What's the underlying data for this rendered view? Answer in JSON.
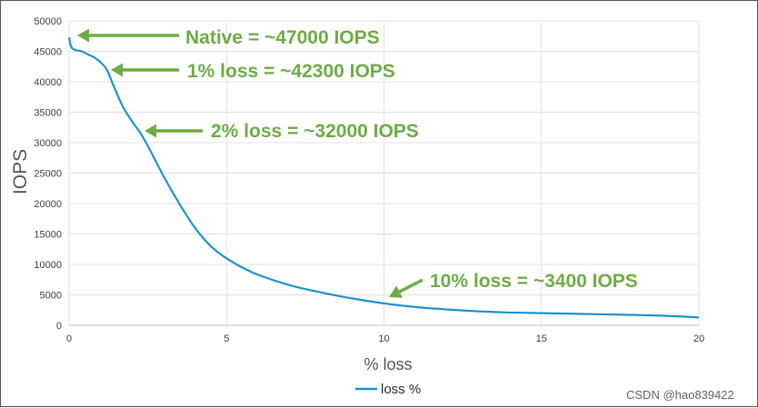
{
  "chart_data": {
    "type": "line",
    "title": "",
    "xlabel": "% loss",
    "ylabel": "IOPS",
    "xlim": [
      0,
      20
    ],
    "ylim": [
      0,
      50000
    ],
    "x_ticks": [
      "0",
      "5",
      "10",
      "15",
      "20"
    ],
    "y_ticks": [
      "0",
      "5000",
      "10000",
      "15000",
      "20000",
      "25000",
      "30000",
      "35000",
      "40000",
      "45000",
      "50000"
    ],
    "grid": "vertical and horizontal",
    "legend_position": "bottom-center",
    "series": [
      {
        "name": "loss %",
        "color": "#1f95d6",
        "x": [
          0,
          0.05,
          0.1,
          0.2,
          0.4,
          0.6,
          0.8,
          1.0,
          1.2,
          1.4,
          1.7,
          2.0,
          2.3,
          2.6,
          3.0,
          3.5,
          4.0,
          4.5,
          5.0,
          5.5,
          6.0,
          7.0,
          8.0,
          9.0,
          10.0,
          11.0,
          12.0,
          13.0,
          14.0,
          15.0,
          16.0,
          17.0,
          18.0,
          19.0,
          20.0
        ],
        "y": [
          47300,
          46000,
          45500,
          45200,
          45000,
          44500,
          44000,
          43200,
          42000,
          39500,
          36000,
          33500,
          31300,
          28500,
          24500,
          20000,
          16000,
          13000,
          11000,
          9500,
          8300,
          6600,
          5400,
          4400,
          3600,
          3000,
          2600,
          2300,
          2100,
          2000,
          1900,
          1800,
          1700,
          1550,
          1300
        ]
      }
    ],
    "annotations": [
      {
        "text": "Native = ~47000 IOPS",
        "x": 0.15,
        "y": 47000
      },
      {
        "text": "1% loss = ~42300 IOPS",
        "x": 1.3,
        "y": 42300
      },
      {
        "text": "2% loss = ~32000 IOPS",
        "x": 2.4,
        "y": 32000
      },
      {
        "text": "10% loss = ~3400 IOPS",
        "x": 10.1,
        "y": 3400
      }
    ],
    "annotation_color": "#6fad46"
  },
  "watermark": "CSDN @hao839422"
}
